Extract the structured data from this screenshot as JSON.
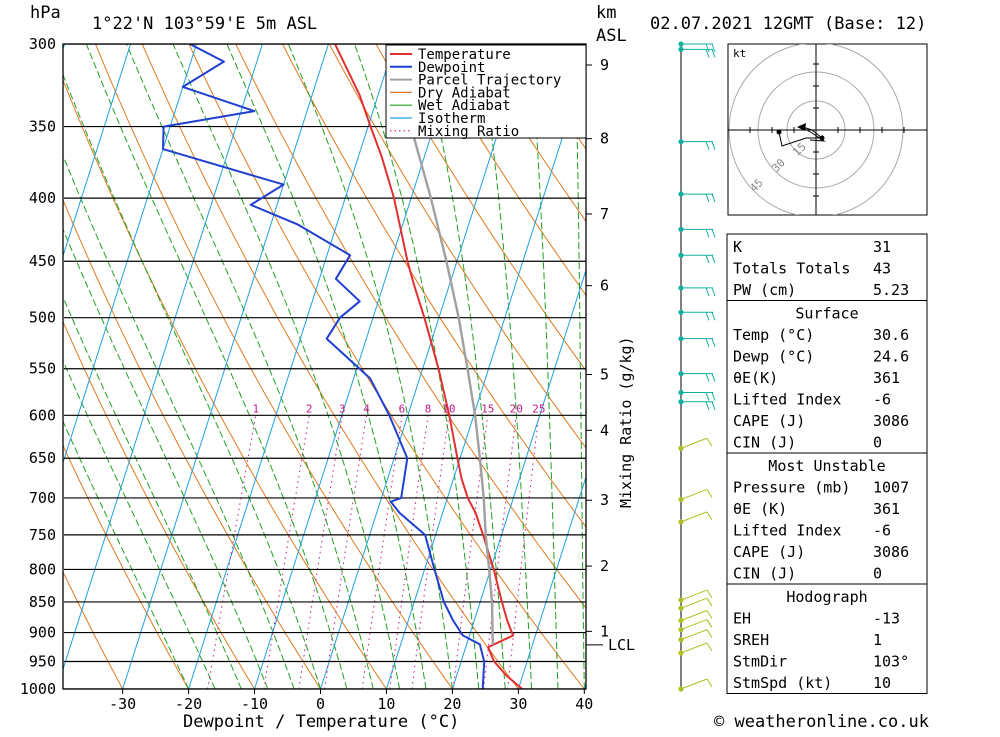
{
  "header": {
    "units_left": "hPa",
    "location": "1°22'N  103°59'E  5m  ASL",
    "units_km": "km",
    "units_asl": "ASL",
    "date": "02.07.2021  12GMT  (Base: 12)"
  },
  "chart_data": {
    "type": "skew-t log-p",
    "xlabel": "Dewpoint / Temperature (°C)",
    "y_right_label": "Mixing Ratio (g/kg)",
    "pressure_levels": [
      300,
      350,
      400,
      450,
      500,
      550,
      600,
      650,
      700,
      750,
      800,
      850,
      900,
      950,
      1000
    ],
    "temp_ticks": [
      -30,
      -20,
      -10,
      0,
      10,
      20,
      30,
      40
    ],
    "km_ticks": [
      {
        "km": "1",
        "p": 898
      },
      {
        "km": "2",
        "p": 795
      },
      {
        "km": "3",
        "p": 703
      },
      {
        "km": "4",
        "p": 617
      },
      {
        "km": "5",
        "p": 556
      },
      {
        "km": "6",
        "p": 471
      },
      {
        "km": "7",
        "p": 412
      },
      {
        "km": "8",
        "p": 358
      },
      {
        "km": "9",
        "p": 312
      }
    ],
    "lcl": {
      "label": "LCL",
      "p": 921
    },
    "mixing_ratios": [
      "1",
      "2",
      "3",
      "4",
      "6",
      "8",
      "10",
      "15",
      "20",
      "25"
    ],
    "legend": [
      "Temperature",
      "Dewpoint",
      "Parcel Trajectory",
      "Dry Adiabat",
      "Wet Adiabat",
      "Isotherm",
      "Mixing Ratio"
    ],
    "colors": {
      "temperature": "#e03030",
      "dewpoint": "#2040d0",
      "parcel": "#a0a0a0",
      "dry_adiabat": "#e07a20",
      "wet_adiabat": "#20a020",
      "isotherm": "#20a0e0",
      "mixing_ratio": "#c0188a",
      "wind_high": "#10b0a0",
      "wind_low": "#b0c020"
    },
    "series": [
      {
        "name": "Temperature",
        "points": [
          [
            1000,
            30.6
          ],
          [
            975,
            27.5
          ],
          [
            950,
            25.0
          ],
          [
            925,
            23.4
          ],
          [
            905,
            26.6
          ],
          [
            880,
            25.0
          ],
          [
            850,
            23.3
          ],
          [
            800,
            20.5
          ],
          [
            750,
            17.2
          ],
          [
            720,
            15.0
          ],
          [
            700,
            13.1
          ],
          [
            675,
            11.2
          ],
          [
            650,
            9.6
          ],
          [
            600,
            6.3
          ],
          [
            550,
            2.4
          ],
          [
            500,
            -2.2
          ],
          [
            470,
            -5.4
          ],
          [
            450,
            -7.5
          ],
          [
            400,
            -12.6
          ],
          [
            370,
            -16.5
          ],
          [
            350,
            -19.6
          ],
          [
            330,
            -22.8
          ],
          [
            300,
            -29.0
          ]
        ]
      },
      {
        "name": "Dewpoint",
        "points": [
          [
            1000,
            24.6
          ],
          [
            950,
            23.5
          ],
          [
            920,
            22.0
          ],
          [
            905,
            19.0
          ],
          [
            880,
            16.8
          ],
          [
            850,
            14.5
          ],
          [
            800,
            11.5
          ],
          [
            750,
            8.4
          ],
          [
            720,
            3.5
          ],
          [
            705,
            1.6
          ],
          [
            700,
            3.0
          ],
          [
            650,
            2.0
          ],
          [
            600,
            -2.8
          ],
          [
            560,
            -7.5
          ],
          [
            520,
            -16.0
          ],
          [
            500,
            -15.0
          ],
          [
            485,
            -12.8
          ],
          [
            465,
            -17.5
          ],
          [
            445,
            -16.5
          ],
          [
            420,
            -26.0
          ],
          [
            405,
            -34.0
          ],
          [
            390,
            -30.0
          ],
          [
            365,
            -50.0
          ],
          [
            350,
            -51.0
          ],
          [
            340,
            -38.0
          ],
          [
            325,
            -50.0
          ],
          [
            310,
            -45.0
          ],
          [
            300,
            -51.0
          ]
        ]
      },
      {
        "name": "Parcel Trajectory",
        "points": [
          [
            921,
            24.0
          ],
          [
            850,
            21.8
          ],
          [
            800,
            19.8
          ],
          [
            750,
            17.6
          ],
          [
            700,
            15.5
          ],
          [
            650,
            13.0
          ],
          [
            600,
            10.2
          ],
          [
            550,
            6.8
          ],
          [
            500,
            3.0
          ],
          [
            450,
            -1.6
          ],
          [
            400,
            -7.0
          ],
          [
            350,
            -13.5
          ],
          [
            300,
            -21.0
          ]
        ]
      }
    ],
    "wind_markers": [
      300,
      303,
      360,
      397,
      424,
      445,
      473,
      495,
      520,
      555,
      575,
      585,
      638,
      702,
      732,
      847,
      860,
      880,
      895,
      912,
      935,
      1000
    ]
  },
  "stats": {
    "block1": [
      {
        "label": "K",
        "value": "31"
      },
      {
        "label": "Totals Totals",
        "value": "43"
      },
      {
        "label": "PW (cm)",
        "value": "5.23"
      }
    ],
    "surface": {
      "title": "Surface",
      "rows": [
        {
          "label": "Temp (°C)",
          "value": "30.6"
        },
        {
          "label": "Dewp (°C)",
          "value": "24.6"
        },
        {
          "label": "θE(K)",
          "value": "361"
        },
        {
          "label": "Lifted Index",
          "value": "-6"
        },
        {
          "label": "CAPE (J)",
          "value": "3086"
        },
        {
          "label": "CIN (J)",
          "value": "0"
        }
      ]
    },
    "most_unstable": {
      "title": "Most Unstable",
      "rows": [
        {
          "label": "Pressure (mb)",
          "value": "1007"
        },
        {
          "label": "θE (K)",
          "value": "361"
        },
        {
          "label": "Lifted Index",
          "value": "-6"
        },
        {
          "label": "CAPE (J)",
          "value": "3086"
        },
        {
          "label": "CIN (J)",
          "value": "0"
        }
      ]
    },
    "hodograph": {
      "title": "Hodograph",
      "rows": [
        {
          "label": "EH",
          "value": "-13"
        },
        {
          "label": "SREH",
          "value": "1"
        },
        {
          "label": "StmDir",
          "value": "103°"
        },
        {
          "label": "StmSpd (kt)",
          "value": "10"
        }
      ]
    }
  },
  "hodo": {
    "unit": "kt",
    "rings": [
      "15",
      "30",
      "45"
    ]
  },
  "copyright": "© weatheronline.co.uk"
}
